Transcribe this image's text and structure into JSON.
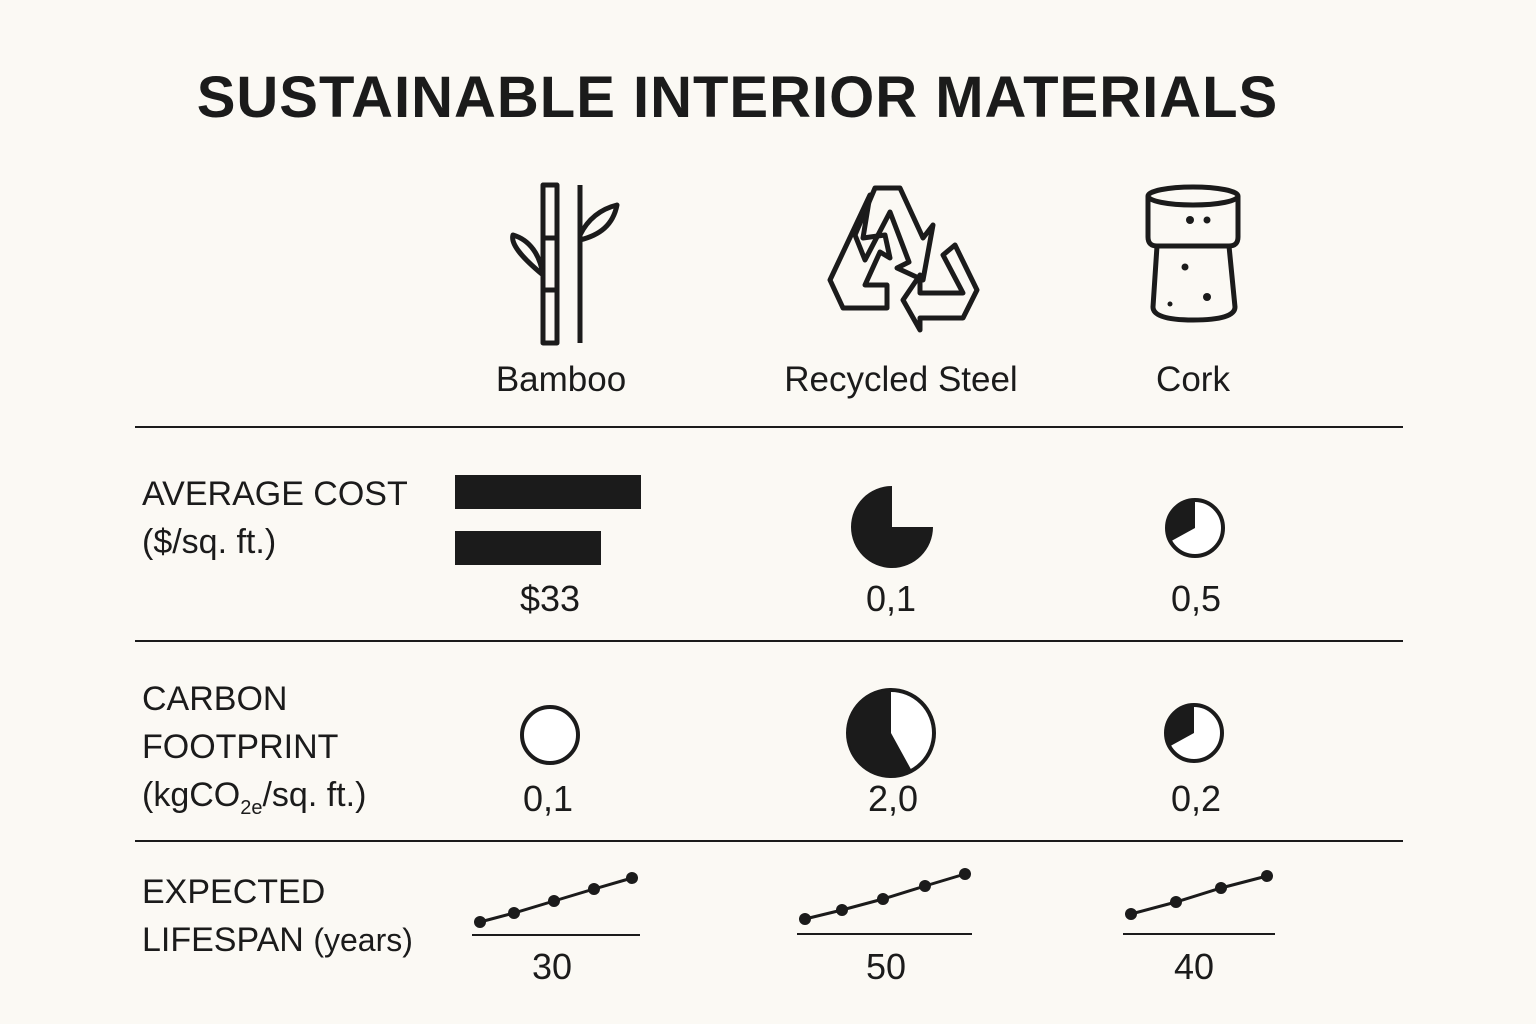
{
  "title": "SUSTAINABLE INTERIOR MATERIALS",
  "materials": [
    {
      "name": "Bamboo",
      "icon": "bamboo-icon"
    },
    {
      "name": "Recycled Steel",
      "icon": "recycle-icon"
    },
    {
      "name": "Cork",
      "icon": "cork-icon"
    }
  ],
  "rows": {
    "cost": {
      "label_1": "AVERAGE COST",
      "label_2": "($/sq. ft.)",
      "values": [
        "$33",
        "0,1",
        "0,5"
      ],
      "pie_fractions": [
        null,
        0.75,
        0.33
      ]
    },
    "carbon": {
      "label_1": "CARBON",
      "label_2": "FOOTPRINT",
      "label_3_pre": "(kgCO",
      "label_3_sub": "2e",
      "label_3_post": "/sq. ft.)",
      "values": [
        "0,1",
        "2,0",
        "0,2"
      ],
      "pie_fractions": [
        0,
        0.58,
        0.33
      ]
    },
    "lifespan": {
      "label_1": "EXPECTED",
      "label_2": "LIFESPAN",
      "label_2_unit": "(years)",
      "values": [
        "30",
        "50",
        "40"
      ]
    }
  },
  "colors": {
    "ink": "#1b1b1b",
    "background": "#fbf9f4"
  }
}
